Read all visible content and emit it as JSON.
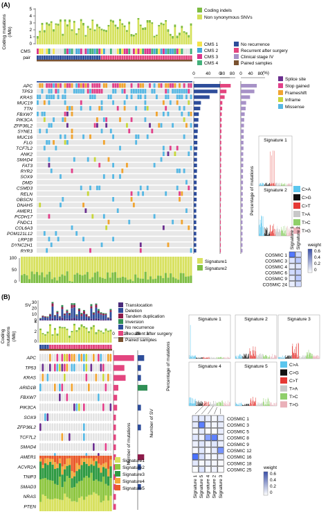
{
  "panelA": {
    "label": "(A)",
    "ylabel_lines": [
      "Coding mutations",
      "(/Mb)"
    ],
    "yticks": [
      "5",
      "4",
      "3",
      "2",
      "1",
      "0"
    ],
    "track_cms": "CMS",
    "track_pair": "pair",
    "mut_legend": [
      {
        "label": "Coding indels",
        "color": "#7dbb42"
      },
      {
        "label": "Non synonymous SNVs",
        "color": "#d4e15a"
      }
    ],
    "cms_legend": [
      {
        "label": "CMS 1",
        "color": "#f3e34b"
      },
      {
        "label": "CMS 2",
        "color": "#46a8d8"
      },
      {
        "label": "CMS 3",
        "color": "#d9368c"
      },
      {
        "label": "CMS 4",
        "color": "#43b07a"
      }
    ],
    "clin_legend": [
      {
        "label": "No recurrence",
        "color": "#2e4d9a"
      },
      {
        "label": "Recurrent after surgery",
        "color": "#e3457f"
      },
      {
        "label": "Clinical stage IV",
        "color": "#a792c7"
      },
      {
        "label": "Paired samples",
        "color": "#7a5230"
      }
    ],
    "variant_legend": [
      {
        "label": "Splice site",
        "color": "#6b2f8f"
      },
      {
        "label": "Stop gained",
        "color": "#e2408a"
      },
      {
        "label": "Frameshift",
        "color": "#f1a430"
      },
      {
        "label": "Inframe",
        "color": "#c8d73c"
      },
      {
        "label": "Missense",
        "color": "#56b8e4"
      }
    ],
    "genes": [
      "APC",
      "TP53",
      "KRAS",
      "MUC19",
      "TTN",
      "FBXW7",
      "PIK3CA",
      "ZFP36L2",
      "SYNE1",
      "MUC16",
      "FLG",
      "TCF7L2",
      "ANK2",
      "SMAD4",
      "FAT3",
      "RYR2",
      "SOX9",
      "DMD",
      "CSMD3",
      "RELN",
      "OBSCN",
      "DNAH5",
      "AMER1",
      "PCDH17",
      "FNDC1",
      "COL6A3",
      "POM121L12",
      "LRP1B",
      "DYNC2H1",
      "RYR3"
    ],
    "freq_axis": {
      "ticks": [
        "0",
        "40",
        "80"
      ],
      "unit": "(%)"
    },
    "freq_values": [
      78,
      66,
      44,
      20,
      18,
      14,
      13,
      12,
      11,
      10,
      10,
      10,
      9,
      9,
      9,
      9,
      8,
      8,
      8,
      8,
      8,
      7,
      7,
      7,
      7,
      7,
      7,
      7,
      7,
      7
    ],
    "clin_bar_axis": {
      "ticks": [
        "0",
        "80"
      ]
    },
    "clin_bar_values": [
      70,
      42,
      30,
      15,
      14,
      11,
      10,
      10,
      9,
      8,
      8,
      8,
      8,
      7,
      7,
      7,
      6,
      6,
      6,
      6,
      6,
      5,
      5,
      5,
      5,
      5,
      5,
      5,
      5,
      5
    ],
    "stage_bar_axis": {
      "ticks": [
        "0",
        "40",
        "80"
      ]
    },
    "stage_bar_values": [
      66,
      56,
      38,
      22,
      20,
      16,
      14,
      13,
      12,
      12,
      11,
      11,
      10,
      10,
      10,
      9,
      9,
      9,
      8,
      8,
      8,
      8,
      8,
      8,
      7,
      7,
      7,
      7,
      7,
      7
    ],
    "sig_track": {
      "yticks": [
        "100",
        "50",
        "0"
      ]
    },
    "sig_legend": [
      {
        "label": "Signature1",
        "color": "#d8e160"
      },
      {
        "label": "Signature2",
        "color": "#7fbe44"
      }
    ],
    "spectrum": {
      "ylabel": "Percentage of mutations",
      "panels": [
        "Signature 1",
        "Signature 2"
      ],
      "classes": [
        {
          "label": "C>A",
          "color": "#5bc6ee"
        },
        {
          "label": "C>G",
          "color": "#111111"
        },
        {
          "label": "C>T",
          "color": "#e53935"
        },
        {
          "label": "T>A",
          "color": "#c8c8c8"
        },
        {
          "label": "T>C",
          "color": "#8fcf6a"
        },
        {
          "label": "T>G",
          "color": "#eab0b9"
        }
      ]
    },
    "cosine": {
      "rows": [
        "COSMIC 1",
        "COSMIC 3",
        "COSMIC 4",
        "COSMIC 6",
        "COSMIC 9",
        "COSMIC 24"
      ],
      "cols": [
        "Signature 1",
        "Signature 2"
      ],
      "values": [
        [
          0.75,
          0.2
        ],
        [
          0.15,
          0.3
        ],
        [
          0.1,
          0.15
        ],
        [
          0.2,
          0.25
        ],
        [
          0.12,
          0.3
        ],
        [
          0.1,
          0.2
        ]
      ],
      "weight_title": "weight",
      "weight_ticks": [
        "0.6",
        "0.4",
        "0.2",
        "0"
      ]
    }
  },
  "panelB": {
    "label": "(B)",
    "sv_label": "SV",
    "sv_yticks": [
      "30",
      "20",
      "10",
      "0"
    ],
    "sv_legend": [
      {
        "label": "Translocation",
        "color": "#4a2a7a"
      },
      {
        "label": "Deletion",
        "color": "#2e4d9a"
      },
      {
        "label": "Tandem duplication",
        "color": "#8e1b4a"
      },
      {
        "label": "Inversion",
        "color": "#2f8f55"
      }
    ],
    "ylabel_lines": [
      "Coding",
      "mutations",
      "(/Mb)"
    ],
    "yticks": [
      "4",
      "2",
      "0"
    ],
    "clin_legend": [
      {
        "label": "No recurrence",
        "color": "#2e4d9a"
      },
      {
        "label": "Recurrent after surgery",
        "color": "#e3457f"
      },
      {
        "label": "Paired samples",
        "color": "#7a5230"
      }
    ],
    "genes": [
      "APC",
      "TP53",
      "KRAS",
      "ARID1B",
      "FBXW7",
      "PIK3CA",
      "SOX9",
      "ZFP36L2",
      "TCF7L2",
      "SMAD4",
      "AMER1",
      "ACVR2A",
      "TNIP3",
      "SMAD3",
      "NRAS",
      "PTEN"
    ],
    "mut_axis": {
      "ticks": [
        "0",
        "10",
        "20"
      ],
      "title": "Number of mutations"
    },
    "mut_values": [
      17,
      9,
      10,
      4,
      3,
      3,
      2,
      2,
      2,
      2,
      2,
      2,
      2,
      2,
      2,
      2
    ],
    "sv_axis": {
      "ticks": [
        "0",
        "3"
      ],
      "title": "Number of SV"
    },
    "sig_legend": [
      {
        "label": "Signature1",
        "color": "#d8e160"
      },
      {
        "label": "Signature2",
        "color": "#8ec641"
      },
      {
        "label": "Signature3",
        "color": "#2f9a43"
      },
      {
        "label": "Signature4",
        "color": "#f3a73a"
      },
      {
        "label": "Signature5",
        "color": "#ea5a2b"
      }
    ],
    "spectrum": {
      "ylabel": "Percentage of mutations",
      "panels": [
        "Signature 1",
        "Signature 2",
        "Signature 3",
        "Signature 4",
        "Signature 5"
      ],
      "classes": [
        {
          "label": "C>A",
          "color": "#5bc6ee"
        },
        {
          "label": "C>G",
          "color": "#111111"
        },
        {
          "label": "C>T",
          "color": "#e53935"
        },
        {
          "label": "T>A",
          "color": "#c8c8c8"
        },
        {
          "label": "T>C",
          "color": "#8fcf6a"
        },
        {
          "label": "T>G",
          "color": "#eab0b9"
        }
      ]
    },
    "cosine": {
      "rows": [
        "COSMIC 1",
        "COSMIC 3",
        "COSMIC 5",
        "COSMIC 8",
        "COSMIC 9",
        "COSMIC 12",
        "COSMIC 16",
        "COSMIC 18",
        "COSMIC 25"
      ],
      "cols": [
        "Signature 1",
        "Signature 5",
        "Signature 4",
        "Signature 2",
        "Signature 3"
      ],
      "weight_title": "weight",
      "weight_ticks": [
        "0.6",
        "0.4",
        "0.2",
        "0"
      ]
    }
  }
}
